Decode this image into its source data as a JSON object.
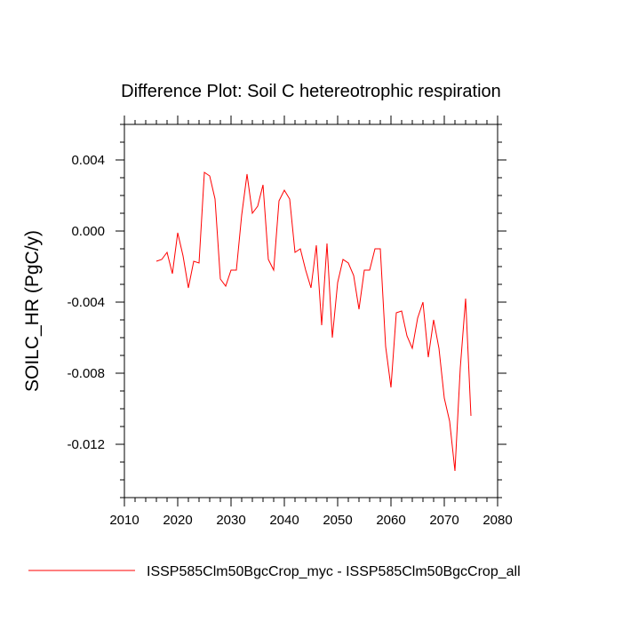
{
  "chart_data": {
    "type": "line",
    "title": "Difference Plot: Soil C hetereotrophic respiration",
    "xlabel": "",
    "ylabel": "SOILC_HR  (PgC/y)",
    "xlim": [
      2010,
      2080
    ],
    "ylim": [
      -0.015,
      0.006
    ],
    "x_ticks": [
      2010,
      2020,
      2030,
      2040,
      2050,
      2060,
      2070,
      2080
    ],
    "x_tick_labels": [
      "2010",
      "2020",
      "2030",
      "2040",
      "2050",
      "2060",
      "2070",
      "2080"
    ],
    "y_ticks": [
      0.004,
      0.0,
      -0.004,
      -0.008,
      -0.012
    ],
    "y_tick_labels": [
      "0.004",
      "0.000",
      "-0.004",
      "-0.008",
      "-0.012"
    ],
    "grid": false,
    "legend_position": "bottom",
    "series": [
      {
        "name": "ISSP585Clm50BgcCrop_myc - ISSP585Clm50BgcCrop_all",
        "color": "#ff0000",
        "x": [
          2016,
          2017,
          2018,
          2019,
          2020,
          2021,
          2022,
          2023,
          2024,
          2025,
          2026,
          2027,
          2028,
          2029,
          2030,
          2031,
          2032,
          2033,
          2034,
          2035,
          2036,
          2037,
          2038,
          2039,
          2040,
          2041,
          2042,
          2043,
          2044,
          2045,
          2046,
          2047,
          2048,
          2049,
          2050,
          2051,
          2052,
          2053,
          2054,
          2055,
          2056,
          2057,
          2058,
          2059,
          2060,
          2061,
          2062,
          2063,
          2064,
          2065,
          2066,
          2067,
          2068,
          2069,
          2070,
          2071,
          2072,
          2073,
          2074,
          2075
        ],
        "y": [
          -0.0017,
          -0.0016,
          -0.0012,
          -0.0024,
          -0.0001,
          -0.0014,
          -0.0032,
          -0.0017,
          -0.0018,
          0.0033,
          0.0031,
          0.0018,
          -0.0027,
          -0.0031,
          -0.0022,
          -0.0022,
          0.0009,
          0.0032,
          0.001,
          0.0014,
          0.0026,
          -0.0016,
          -0.0022,
          0.0017,
          0.0023,
          0.0018,
          -0.0012,
          -0.001,
          -0.0022,
          -0.0032,
          -0.0008,
          -0.0053,
          -0.0007,
          -0.006,
          -0.0029,
          -0.0016,
          -0.0018,
          -0.0025,
          -0.0044,
          -0.0022,
          -0.0022,
          -0.001,
          -0.001,
          -0.0065,
          -0.0088,
          -0.0046,
          -0.0045,
          -0.0059,
          -0.0066,
          -0.0049,
          -0.004,
          -0.0071,
          -0.005,
          -0.0066,
          -0.0094,
          -0.0107,
          -0.0135,
          -0.0077,
          -0.0038,
          -0.0104
        ]
      }
    ]
  }
}
